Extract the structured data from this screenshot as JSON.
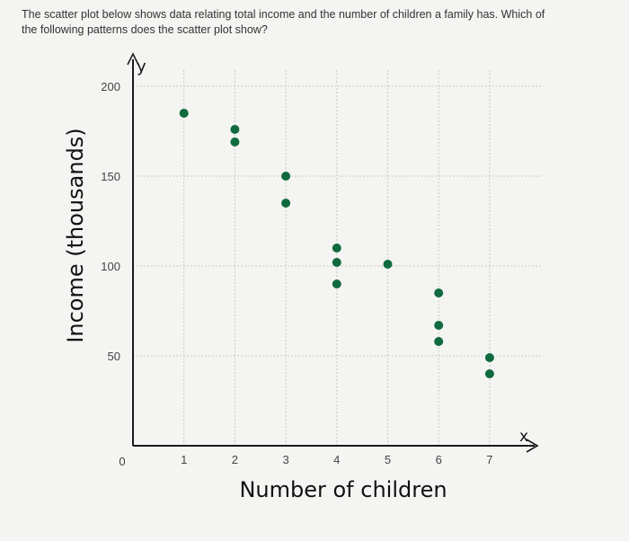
{
  "question": {
    "text": "The scatter plot below shows data relating total income and the number of children a family has. Which of the following patterns does the scatter plot show?"
  },
  "colors": {
    "point": "#0f6a3e",
    "axis": "#1a1a1a",
    "grid": "#c8c8c8",
    "background": "#f4f4f2"
  },
  "chart_data": {
    "type": "scatter",
    "xlabel": "Number of children",
    "ylabel": "Income (thousands)",
    "x_axis_symbol": "x",
    "y_axis_symbol": "y",
    "xlim": [
      0,
      7.8
    ],
    "ylim": [
      0,
      215
    ],
    "x_ticks": [
      1,
      2,
      3,
      4,
      5,
      6,
      7
    ],
    "y_ticks": [
      50,
      100,
      150,
      200
    ],
    "origin_label": "0",
    "grid": true,
    "points": [
      {
        "x": 1,
        "y": 185
      },
      {
        "x": 2,
        "y": 176
      },
      {
        "x": 2,
        "y": 169
      },
      {
        "x": 3,
        "y": 150
      },
      {
        "x": 3,
        "y": 135
      },
      {
        "x": 4,
        "y": 110
      },
      {
        "x": 4,
        "y": 102
      },
      {
        "x": 4,
        "y": 90
      },
      {
        "x": 5,
        "y": 101
      },
      {
        "x": 6,
        "y": 85
      },
      {
        "x": 6,
        "y": 67
      },
      {
        "x": 6,
        "y": 58
      },
      {
        "x": 7,
        "y": 49
      },
      {
        "x": 7,
        "y": 40
      }
    ]
  }
}
